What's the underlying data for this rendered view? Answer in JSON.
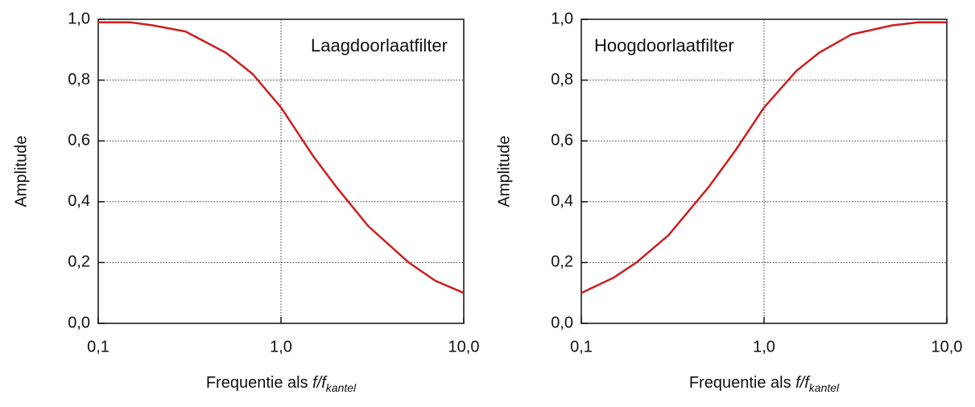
{
  "chart_data": [
    {
      "type": "line",
      "annotation": "Laagdoorlaatfilter",
      "annotation_corner": "upper right",
      "ylabel": "Amplitude",
      "xlabel": {
        "text": "Frequentie als ",
        "var": "f/f",
        "sub": "kantel"
      },
      "xscale": "log",
      "grid": true,
      "x": [
        0.1,
        0.15,
        0.2,
        0.3,
        0.5,
        0.7,
        1,
        1.5,
        2,
        3,
        5,
        7,
        10
      ],
      "series": [
        {
          "color": "#cc1f1f",
          "values": [
            0.99,
            0.99,
            0.98,
            0.96,
            0.89,
            0.82,
            0.71,
            0.55,
            0.45,
            0.32,
            0.2,
            0.14,
            0.1
          ]
        }
      ],
      "xlim": [
        0.1,
        10
      ],
      "xticks": [
        {
          "value": 0.1,
          "label": "0,1"
        },
        {
          "value": 1,
          "label": "1,0"
        },
        {
          "value": 10,
          "label": "10,0"
        }
      ],
      "ylim": [
        0,
        1
      ],
      "yticks": [
        {
          "value": 0,
          "label": "0,0"
        },
        {
          "value": 0.2,
          "label": "0,2"
        },
        {
          "value": 0.4,
          "label": "0,4"
        },
        {
          "value": 0.6,
          "label": "0,6"
        },
        {
          "value": 0.8,
          "label": "0,8"
        },
        {
          "value": 1,
          "label": "1,0"
        }
      ]
    },
    {
      "type": "line",
      "annotation": "Hoogdoorlaatfilter",
      "annotation_corner": "upper left",
      "ylabel": "Amplitude",
      "xlabel": {
        "text": "Frequentie als ",
        "var": "f/f",
        "sub": "kantel"
      },
      "xscale": "log",
      "grid": true,
      "x": [
        0.1,
        0.15,
        0.2,
        0.3,
        0.5,
        0.7,
        1,
        1.5,
        2,
        3,
        5,
        7,
        10
      ],
      "series": [
        {
          "color": "#cc1f1f",
          "values": [
            0.1,
            0.15,
            0.2,
            0.29,
            0.45,
            0.57,
            0.71,
            0.83,
            0.89,
            0.95,
            0.98,
            0.99,
            0.99
          ]
        }
      ],
      "xlim": [
        0.1,
        10
      ],
      "xticks": [
        {
          "value": 0.1,
          "label": "0,1"
        },
        {
          "value": 1,
          "label": "1,0"
        },
        {
          "value": 10,
          "label": "10,0"
        }
      ],
      "ylim": [
        0,
        1
      ],
      "yticks": [
        {
          "value": 0,
          "label": "0,0"
        },
        {
          "value": 0.2,
          "label": "0,2"
        },
        {
          "value": 0.4,
          "label": "0,4"
        },
        {
          "value": 0.6,
          "label": "0,6"
        },
        {
          "value": 0.8,
          "label": "0,8"
        },
        {
          "value": 1,
          "label": "1,0"
        }
      ]
    }
  ]
}
